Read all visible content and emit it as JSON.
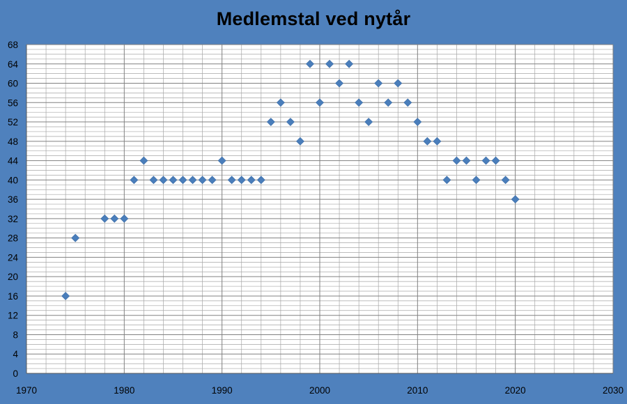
{
  "chart_data": {
    "type": "scatter",
    "title": "Medlemstal ved nytår",
    "xlabel": "",
    "ylabel": "",
    "xlim": [
      1970,
      2030
    ],
    "ylim": [
      0,
      68
    ],
    "x_ticks": [
      1970,
      1980,
      1990,
      2000,
      2010,
      2020,
      2030
    ],
    "y_ticks": [
      0,
      4,
      8,
      12,
      16,
      20,
      24,
      28,
      32,
      36,
      40,
      44,
      48,
      52,
      56,
      60,
      64,
      68
    ],
    "grid": true,
    "legend": "none",
    "marker": "diamond",
    "colors": {
      "background": "#4f81bd",
      "plot_area": "#ffffff",
      "gridline": "#a6a6a6",
      "major_gridline": "#808080",
      "marker": "#4a7ebb"
    },
    "series": [
      {
        "x": [
          1974,
          1975,
          1978,
          1979,
          1980,
          1981,
          1982,
          1983,
          1984,
          1985,
          1986,
          1987,
          1988,
          1989,
          1990,
          1991,
          1992,
          1993,
          1994,
          1995,
          1996,
          1997,
          1998,
          1999,
          2000,
          2001,
          2002,
          2003,
          2004,
          2005,
          2006,
          2007,
          2008,
          2009,
          2010,
          2011,
          2012,
          2013,
          2014,
          2015,
          2016,
          2017,
          2018,
          2019,
          2020
        ],
        "y": [
          16,
          28,
          32,
          32,
          32,
          40,
          44,
          40,
          40,
          40,
          40,
          40,
          40,
          40,
          44,
          40,
          40,
          40,
          40,
          52,
          56,
          52,
          48,
          64,
          56,
          64,
          60,
          64,
          56,
          52,
          60,
          56,
          60,
          56,
          52,
          48,
          48,
          40,
          44,
          44,
          40,
          44,
          44,
          40,
          36
        ]
      }
    ]
  }
}
